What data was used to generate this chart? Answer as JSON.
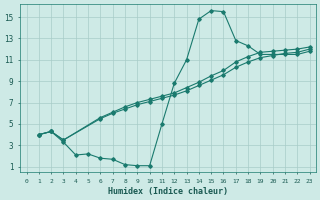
{
  "xlabel": "Humidex (Indice chaleur)",
  "bg_color": "#ceeae6",
  "grid_color": "#a8ccc8",
  "line_color": "#1a7a6e",
  "xlim": [
    -0.5,
    23.5
  ],
  "ylim": [
    0.5,
    16.2
  ],
  "xticks": [
    0,
    1,
    2,
    3,
    4,
    5,
    6,
    7,
    8,
    9,
    10,
    11,
    12,
    13,
    14,
    15,
    16,
    17,
    18,
    19,
    20,
    21,
    22,
    23
  ],
  "yticks": [
    1,
    3,
    5,
    7,
    9,
    11,
    13,
    15
  ],
  "line1_x": [
    1,
    2,
    3,
    4,
    5,
    6,
    7,
    8,
    9,
    10,
    11,
    12,
    13,
    14,
    15,
    16,
    17,
    18,
    19,
    20,
    21,
    22,
    23
  ],
  "line1_y": [
    4.0,
    4.3,
    3.3,
    2.1,
    2.2,
    1.8,
    1.7,
    1.2,
    1.1,
    1.1,
    5.0,
    8.8,
    11.0,
    14.8,
    15.6,
    15.5,
    12.8,
    12.3,
    11.5,
    11.5,
    11.5,
    11.5,
    11.8
  ],
  "line2_x": [
    1,
    2,
    3,
    6,
    7,
    8,
    9,
    10,
    11,
    12,
    13,
    14,
    15,
    16,
    17,
    18,
    19,
    20,
    21,
    22,
    23
  ],
  "line2_y": [
    4.0,
    4.3,
    3.5,
    5.5,
    6.0,
    6.4,
    6.8,
    7.1,
    7.4,
    7.7,
    8.1,
    8.6,
    9.1,
    9.6,
    10.3,
    10.8,
    11.2,
    11.4,
    11.6,
    11.7,
    12.0
  ],
  "line3_x": [
    1,
    2,
    3,
    6,
    7,
    8,
    9,
    10,
    11,
    12,
    13,
    14,
    15,
    16,
    17,
    18,
    19,
    20,
    21,
    22,
    23
  ],
  "line3_y": [
    4.0,
    4.3,
    3.5,
    5.6,
    6.1,
    6.6,
    7.0,
    7.3,
    7.6,
    7.9,
    8.4,
    8.9,
    9.5,
    10.0,
    10.8,
    11.3,
    11.7,
    11.8,
    11.9,
    12.0,
    12.2
  ]
}
